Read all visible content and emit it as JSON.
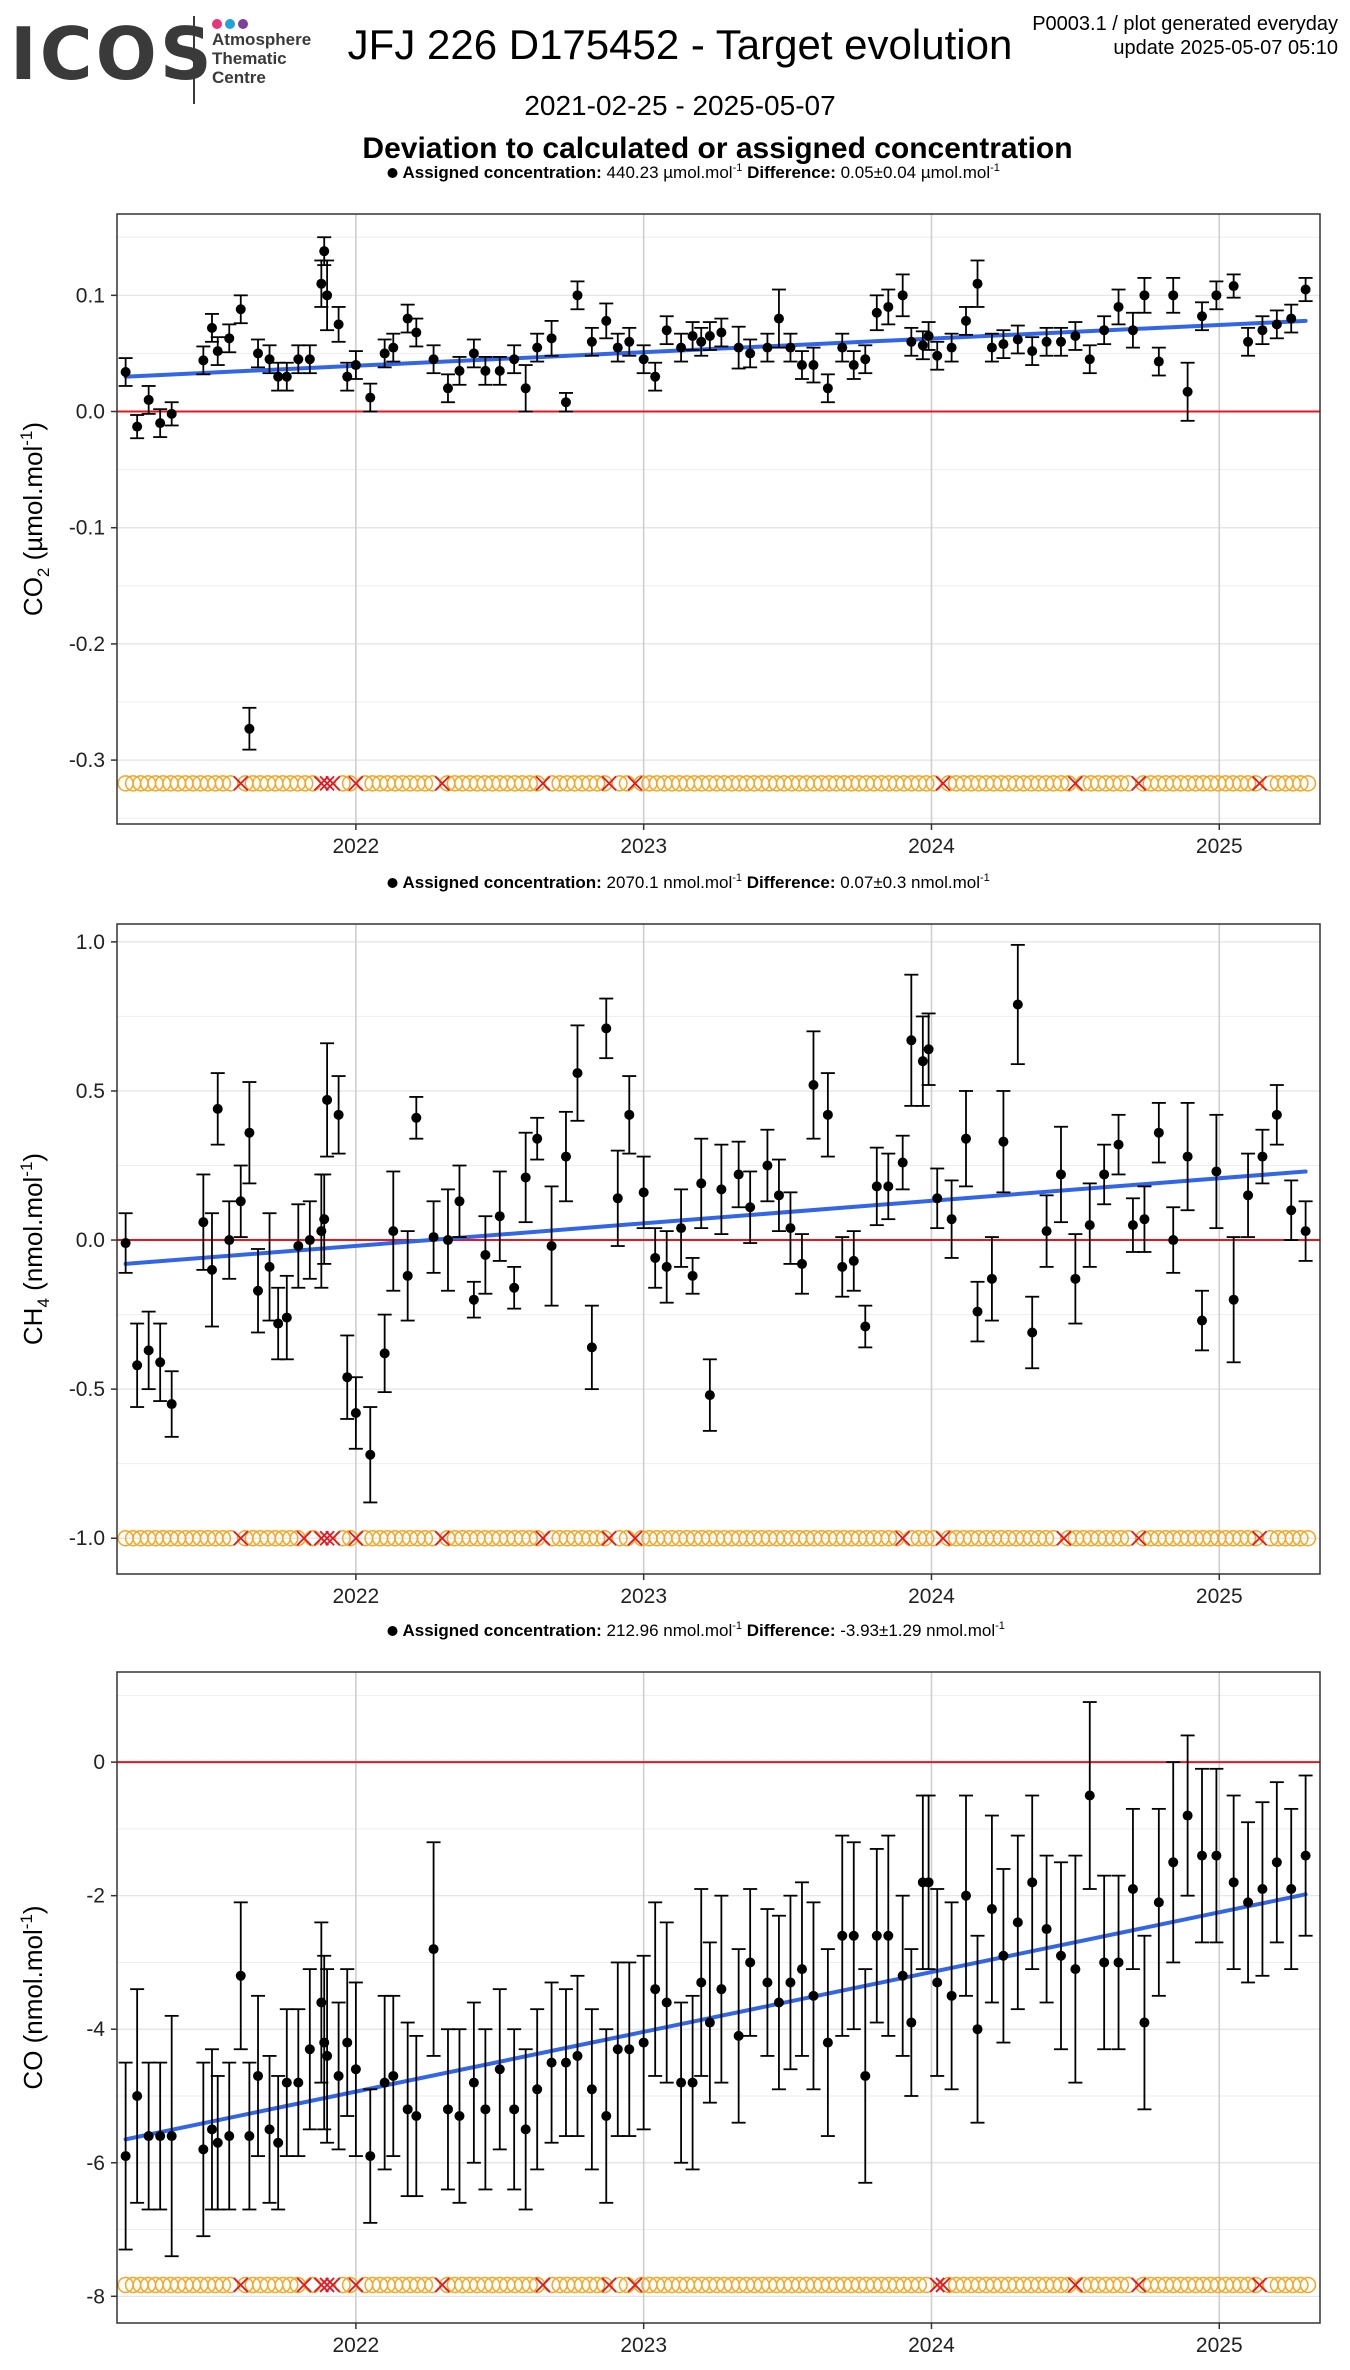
{
  "header": {
    "logo_word": "ICOS",
    "logo_lines": [
      "Atmosphere",
      "Thematic",
      "Centre"
    ],
    "logo_dot_colors": [
      "#e8347a",
      "#1fa3d8",
      "#7d3f98"
    ],
    "title": "JFJ 226 D175452 - Target evolution",
    "date_range": "2021-02-25 - 2025-05-07",
    "plot_info": "P0003.1 / plot generated everyday",
    "update": "update  2025-05-07 05:10",
    "section_title": "Deviation to calculated or assigned concentration"
  },
  "colors": {
    "points": "#000000",
    "trend": "#3366e6",
    "zero_line": "#e8141e",
    "valid_marker": "#f5a623",
    "rejected_marker": "#e8141e"
  },
  "chart_data": [
    {
      "type": "scatter",
      "ylabel_main": "CO",
      "ylabel_sub": "2",
      "ylabel_unit": " (µmol.mol",
      "ylabel_sup": "-1",
      "ylabel_end": ")",
      "info_assigned_label": "Assigned concentration:",
      "info_assigned_value": "440.23 µmol.mol",
      "info_difference_label": "Difference:",
      "info_difference_value": "0.05±0.04 µmol.mol",
      "info_unit_sup": "-1",
      "xlim": [
        2021.17,
        2025.35
      ],
      "xticks": [
        2022,
        2023,
        2024,
        2025
      ],
      "xtick_labels": [
        "2022",
        "2023",
        "2024",
        "2025"
      ],
      "ylim": [
        -0.355,
        0.17
      ],
      "yticks": [
        -0.3,
        -0.2,
        -0.1,
        0.0,
        0.1
      ],
      "ytick_labels": [
        "-0.3",
        "-0.2",
        "-0.1",
        "0.0",
        "0.1"
      ],
      "marker_y": -0.32,
      "trend": [
        [
          2021.2,
          0.03
        ],
        [
          2025.3,
          0.078
        ]
      ],
      "x": [
        2021.2,
        2021.24,
        2021.28,
        2021.32,
        2021.36,
        2021.47,
        2021.5,
        2021.52,
        2021.56,
        2021.6,
        2021.63,
        2021.66,
        2021.7,
        2021.73,
        2021.76,
        2021.8,
        2021.84,
        2021.88,
        2021.89,
        2021.9,
        2021.94,
        2021.97,
        2022.0,
        2022.05,
        2022.1,
        2022.13,
        2022.18,
        2022.21,
        2022.27,
        2022.32,
        2022.36,
        2022.41,
        2022.45,
        2022.5,
        2022.55,
        2022.59,
        2022.63,
        2022.68,
        2022.73,
        2022.77,
        2022.82,
        2022.87,
        2022.91,
        2022.95,
        2023.0,
        2023.04,
        2023.08,
        2023.13,
        2023.17,
        2023.2,
        2023.23,
        2023.27,
        2023.33,
        2023.37,
        2023.43,
        2023.47,
        2023.51,
        2023.55,
        2023.59,
        2023.64,
        2023.69,
        2023.73,
        2023.77,
        2023.81,
        2023.85,
        2023.9,
        2023.93,
        2023.97,
        2023.99,
        2024.02,
        2024.07,
        2024.12,
        2024.16,
        2024.21,
        2024.25,
        2024.3,
        2024.35,
        2024.4,
        2024.45,
        2024.5,
        2024.55,
        2024.6,
        2024.65,
        2024.7,
        2024.74,
        2024.79,
        2024.84,
        2024.89,
        2024.94,
        2024.99,
        2025.05,
        2025.1,
        2025.15,
        2025.2,
        2025.25,
        2025.3
      ],
      "y": [
        0.034,
        -0.013,
        0.01,
        -0.01,
        -0.002,
        0.044,
        0.072,
        0.052,
        0.063,
        0.088,
        -0.273,
        0.05,
        0.045,
        0.03,
        0.03,
        0.045,
        0.045,
        0.11,
        0.138,
        0.1,
        0.075,
        0.03,
        0.04,
        0.012,
        0.05,
        0.055,
        0.08,
        0.068,
        0.045,
        0.02,
        0.035,
        0.05,
        0.035,
        0.035,
        0.045,
        0.02,
        0.055,
        0.063,
        0.008,
        0.1,
        0.06,
        0.078,
        0.055,
        0.06,
        0.045,
        0.03,
        0.07,
        0.055,
        0.065,
        0.06,
        0.065,
        0.068,
        0.055,
        0.05,
        0.055,
        0.08,
        0.055,
        0.04,
        0.04,
        0.02,
        0.055,
        0.04,
        0.045,
        0.085,
        0.09,
        0.1,
        0.06,
        0.057,
        0.065,
        0.048,
        0.055,
        0.078,
        0.11,
        0.055,
        0.058,
        0.062,
        0.052,
        0.06,
        0.06,
        0.065,
        0.045,
        0.07,
        0.09,
        0.07,
        0.1,
        0.043,
        0.1,
        0.017,
        0.082,
        0.1,
        0.108,
        0.06,
        0.07,
        0.075,
        0.08,
        0.105
      ],
      "err": [
        0.012,
        0.01,
        0.012,
        0.012,
        0.01,
        0.012,
        0.012,
        0.012,
        0.012,
        0.012,
        0.018,
        0.012,
        0.012,
        0.012,
        0.012,
        0.012,
        0.012,
        0.02,
        0.012,
        0.03,
        0.015,
        0.012,
        0.012,
        0.012,
        0.012,
        0.012,
        0.012,
        0.012,
        0.012,
        0.012,
        0.012,
        0.012,
        0.012,
        0.012,
        0.012,
        0.02,
        0.012,
        0.015,
        0.008,
        0.012,
        0.012,
        0.015,
        0.012,
        0.012,
        0.012,
        0.012,
        0.012,
        0.012,
        0.012,
        0.012,
        0.012,
        0.012,
        0.018,
        0.012,
        0.012,
        0.025,
        0.012,
        0.012,
        0.015,
        0.012,
        0.012,
        0.012,
        0.012,
        0.015,
        0.015,
        0.018,
        0.012,
        0.012,
        0.012,
        0.012,
        0.012,
        0.012,
        0.02,
        0.012,
        0.012,
        0.012,
        0.012,
        0.012,
        0.012,
        0.012,
        0.012,
        0.012,
        0.015,
        0.015,
        0.015,
        0.012,
        0.015,
        0.025,
        0.012,
        0.012,
        0.01,
        0.012,
        0.012,
        0.012,
        0.012,
        0.01
      ],
      "rejected_x": [
        2021.6,
        2021.88,
        2021.9,
        2021.92,
        2022.0,
        2022.3,
        2022.65,
        2022.88,
        2022.97,
        2024.04,
        2024.5,
        2024.72,
        2025.14
      ],
      "marker_range": [
        2021.2,
        2025.32
      ],
      "marker_step": 0.026
    },
    {
      "type": "scatter",
      "ylabel_main": "CH",
      "ylabel_sub": "4",
      "ylabel_unit": " (nmol.mol",
      "ylabel_sup": "-1",
      "ylabel_end": ")",
      "info_assigned_label": "Assigned concentration:",
      "info_assigned_value": "2070.1 nmol.mol",
      "info_difference_label": "Difference:",
      "info_difference_value": "0.07±0.3 nmol.mol",
      "info_unit_sup": "-1",
      "xlim": [
        2021.17,
        2025.35
      ],
      "xticks": [
        2022,
        2023,
        2024,
        2025
      ],
      "xtick_labels": [
        "2022",
        "2023",
        "2024",
        "2025"
      ],
      "ylim": [
        -1.12,
        1.06
      ],
      "yticks": [
        -1.0,
        -0.5,
        0.0,
        0.5,
        1.0
      ],
      "ytick_labels": [
        "-1.0",
        "-0.5",
        "0.0",
        "0.5",
        "1.0"
      ],
      "marker_y": -1.0,
      "trend": [
        [
          2021.2,
          -0.08
        ],
        [
          2025.3,
          0.23
        ]
      ],
      "x": [
        2021.2,
        2021.24,
        2021.28,
        2021.32,
        2021.36,
        2021.47,
        2021.5,
        2021.52,
        2021.56,
        2021.6,
        2021.63,
        2021.66,
        2021.7,
        2021.73,
        2021.76,
        2021.8,
        2021.84,
        2021.88,
        2021.89,
        2021.9,
        2021.94,
        2021.97,
        2022.0,
        2022.05,
        2022.1,
        2022.13,
        2022.18,
        2022.21,
        2022.27,
        2022.32,
        2022.36,
        2022.41,
        2022.45,
        2022.5,
        2022.55,
        2022.59,
        2022.63,
        2022.68,
        2022.73,
        2022.77,
        2022.82,
        2022.87,
        2022.91,
        2022.95,
        2023.0,
        2023.04,
        2023.08,
        2023.13,
        2023.17,
        2023.2,
        2023.23,
        2023.27,
        2023.33,
        2023.37,
        2023.43,
        2023.47,
        2023.51,
        2023.55,
        2023.59,
        2023.64,
        2023.69,
        2023.73,
        2023.77,
        2023.81,
        2023.85,
        2023.9,
        2023.93,
        2023.97,
        2023.99,
        2024.02,
        2024.07,
        2024.12,
        2024.16,
        2024.21,
        2024.25,
        2024.3,
        2024.35,
        2024.4,
        2024.45,
        2024.5,
        2024.55,
        2024.6,
        2024.65,
        2024.7,
        2024.74,
        2024.79,
        2024.84,
        2024.89,
        2024.94,
        2024.99,
        2025.05,
        2025.1,
        2025.15,
        2025.2,
        2025.25,
        2025.3
      ],
      "y": [
        -0.01,
        -0.42,
        -0.37,
        -0.41,
        -0.55,
        0.06,
        -0.1,
        0.44,
        0.0,
        0.13,
        0.36,
        -0.17,
        -0.09,
        -0.28,
        -0.26,
        -0.02,
        0.0,
        0.03,
        0.07,
        0.47,
        0.42,
        -0.46,
        -0.58,
        -0.72,
        -0.38,
        0.03,
        -0.12,
        0.41,
        0.01,
        0.0,
        0.13,
        -0.2,
        -0.05,
        0.08,
        -0.16,
        0.21,
        0.34,
        -0.02,
        0.28,
        0.56,
        -0.36,
        0.71,
        0.14,
        0.42,
        0.16,
        -0.06,
        -0.09,
        0.04,
        -0.12,
        0.19,
        -0.52,
        0.17,
        0.22,
        0.11,
        0.25,
        0.15,
        0.04,
        -0.08,
        0.52,
        0.42,
        -0.09,
        -0.07,
        -0.29,
        0.18,
        0.18,
        0.26,
        0.67,
        0.6,
        0.64,
        0.14,
        0.07,
        0.34,
        -0.24,
        -0.13,
        0.33,
        0.79,
        -0.31,
        0.03,
        0.22,
        -0.13,
        0.05,
        0.22,
        0.32,
        0.05,
        0.07,
        0.36,
        0.0,
        0.28,
        -0.27,
        0.23,
        -0.2,
        0.15,
        0.28,
        0.42,
        0.1,
        0.03
      ],
      "err": [
        0.1,
        0.14,
        0.13,
        0.13,
        0.11,
        0.16,
        0.19,
        0.12,
        0.13,
        0.12,
        0.17,
        0.14,
        0.18,
        0.12,
        0.14,
        0.14,
        0.13,
        0.19,
        0.15,
        0.19,
        0.13,
        0.14,
        0.12,
        0.16,
        0.13,
        0.2,
        0.15,
        0.07,
        0.12,
        0.17,
        0.12,
        0.06,
        0.13,
        0.15,
        0.07,
        0.15,
        0.07,
        0.2,
        0.15,
        0.16,
        0.14,
        0.1,
        0.16,
        0.13,
        0.12,
        0.1,
        0.12,
        0.13,
        0.06,
        0.15,
        0.12,
        0.15,
        0.11,
        0.12,
        0.12,
        0.12,
        0.12,
        0.1,
        0.18,
        0.14,
        0.1,
        0.1,
        0.07,
        0.13,
        0.11,
        0.09,
        0.22,
        0.15,
        0.12,
        0.1,
        0.13,
        0.16,
        0.1,
        0.14,
        0.17,
        0.2,
        0.12,
        0.12,
        0.16,
        0.15,
        0.14,
        0.1,
        0.1,
        0.09,
        0.11,
        0.1,
        0.11,
        0.18,
        0.1,
        0.19,
        0.21,
        0.14,
        0.09,
        0.1,
        0.1,
        0.1
      ],
      "rejected_x": [
        2021.6,
        2021.82,
        2021.88,
        2021.9,
        2021.92,
        2022.0,
        2022.3,
        2022.65,
        2022.88,
        2022.97,
        2023.9,
        2024.04,
        2024.46,
        2024.72,
        2025.14
      ],
      "marker_range": [
        2021.2,
        2025.32
      ],
      "marker_step": 0.026
    },
    {
      "type": "scatter",
      "ylabel_main": "CO",
      "ylabel_sub": "",
      "ylabel_unit": " (nmol.mol",
      "ylabel_sup": "-1",
      "ylabel_end": ")",
      "info_assigned_label": "Assigned concentration:",
      "info_assigned_value": "212.96 nmol.mol",
      "info_difference_label": "Difference:",
      "info_difference_value": "-3.93±1.29 nmol.mol",
      "info_unit_sup": "-1",
      "xlim": [
        2021.17,
        2025.35
      ],
      "xticks": [
        2022,
        2023,
        2024,
        2025
      ],
      "xtick_labels": [
        "2022",
        "2023",
        "2024",
        "2025"
      ],
      "ylim": [
        -8.4,
        1.35
      ],
      "yticks": [
        -8,
        -6,
        -4,
        -2,
        0
      ],
      "ytick_labels": [
        "-8",
        "-6",
        "-4",
        "-2",
        "0"
      ],
      "marker_y": -7.83,
      "trend": [
        [
          2021.2,
          -5.65
        ],
        [
          2025.3,
          -1.98
        ]
      ],
      "x": [
        2021.2,
        2021.24,
        2021.28,
        2021.32,
        2021.36,
        2021.47,
        2021.5,
        2021.52,
        2021.56,
        2021.6,
        2021.63,
        2021.66,
        2021.7,
        2021.73,
        2021.76,
        2021.8,
        2021.84,
        2021.88,
        2021.89,
        2021.9,
        2021.94,
        2021.97,
        2022.0,
        2022.05,
        2022.1,
        2022.13,
        2022.18,
        2022.21,
        2022.27,
        2022.32,
        2022.36,
        2022.41,
        2022.45,
        2022.5,
        2022.55,
        2022.59,
        2022.63,
        2022.68,
        2022.73,
        2022.77,
        2022.82,
        2022.87,
        2022.91,
        2022.95,
        2023.0,
        2023.04,
        2023.08,
        2023.13,
        2023.17,
        2023.2,
        2023.23,
        2023.27,
        2023.33,
        2023.37,
        2023.43,
        2023.47,
        2023.51,
        2023.55,
        2023.59,
        2023.64,
        2023.69,
        2023.73,
        2023.77,
        2023.81,
        2023.85,
        2023.9,
        2023.93,
        2023.97,
        2023.99,
        2024.02,
        2024.07,
        2024.12,
        2024.16,
        2024.21,
        2024.25,
        2024.3,
        2024.35,
        2024.4,
        2024.45,
        2024.5,
        2024.55,
        2024.6,
        2024.65,
        2024.7,
        2024.74,
        2024.79,
        2024.84,
        2024.89,
        2024.94,
        2024.99,
        2025.05,
        2025.1,
        2025.15,
        2025.2,
        2025.25,
        2025.3
      ],
      "y": [
        -5.9,
        -5.0,
        -5.6,
        -5.6,
        -5.6,
        -5.8,
        -5.5,
        -5.7,
        -5.6,
        -3.2,
        -5.6,
        -4.7,
        -5.5,
        -5.7,
        -4.8,
        -4.8,
        -4.3,
        -3.6,
        -4.2,
        -4.4,
        -4.7,
        -4.2,
        -4.6,
        -5.9,
        -4.8,
        -4.7,
        -5.2,
        -5.3,
        -2.8,
        -5.2,
        -5.3,
        -4.8,
        -5.2,
        -4.6,
        -5.2,
        -5.5,
        -4.9,
        -4.5,
        -4.5,
        -4.4,
        -4.9,
        -5.3,
        -4.3,
        -4.3,
        -4.2,
        -3.4,
        -3.6,
        -4.8,
        -4.8,
        -3.3,
        -3.9,
        -3.4,
        -4.1,
        -3.0,
        -3.3,
        -3.6,
        -3.3,
        -3.1,
        -3.5,
        -4.2,
        -2.6,
        -2.6,
        -4.7,
        -2.6,
        -2.6,
        -3.2,
        -3.9,
        -1.8,
        -1.8,
        -3.3,
        -3.5,
        -2.0,
        -4.0,
        -2.2,
        -2.9,
        -2.4,
        -1.8,
        -2.5,
        -2.9,
        -3.1,
        -0.5,
        -3.0,
        -3.0,
        -1.9,
        -3.9,
        -2.1,
        -1.5,
        -0.8,
        -1.4,
        -1.4,
        -1.8,
        -2.1,
        -1.9,
        -1.5,
        -1.9,
        -1.4
      ],
      "err": [
        1.4,
        1.6,
        1.1,
        1.1,
        1.8,
        1.3,
        1.2,
        1.0,
        1.1,
        1.1,
        1.1,
        1.2,
        1.1,
        1.0,
        1.1,
        1.1,
        1.2,
        1.2,
        1.3,
        1.3,
        1.1,
        1.1,
        1.3,
        1.0,
        1.3,
        1.2,
        1.3,
        1.2,
        1.6,
        1.2,
        1.3,
        1.2,
        1.2,
        1.2,
        1.2,
        1.2,
        1.2,
        1.2,
        1.1,
        1.2,
        1.2,
        1.3,
        1.3,
        1.3,
        1.3,
        1.3,
        1.2,
        1.2,
        1.3,
        1.4,
        1.2,
        1.4,
        1.3,
        1.1,
        1.1,
        1.3,
        1.3,
        1.3,
        1.4,
        1.4,
        1.5,
        1.4,
        1.6,
        1.3,
        1.5,
        1.2,
        1.1,
        1.3,
        1.3,
        1.4,
        1.4,
        1.5,
        1.4,
        1.4,
        1.3,
        1.3,
        1.3,
        1.1,
        1.4,
        1.7,
        1.4,
        1.3,
        1.3,
        1.2,
        1.3,
        1.4,
        1.5,
        1.2,
        1.3,
        1.3,
        1.3,
        1.2,
        1.3,
        1.2,
        1.2,
        1.2
      ],
      "rejected_x": [
        2021.6,
        2021.82,
        2021.88,
        2021.9,
        2021.92,
        2022.0,
        2022.3,
        2022.65,
        2022.88,
        2022.97,
        2024.02,
        2024.04,
        2024.5,
        2024.72,
        2025.14
      ],
      "marker_range": [
        2021.2,
        2025.32
      ],
      "marker_step": 0.026
    }
  ]
}
